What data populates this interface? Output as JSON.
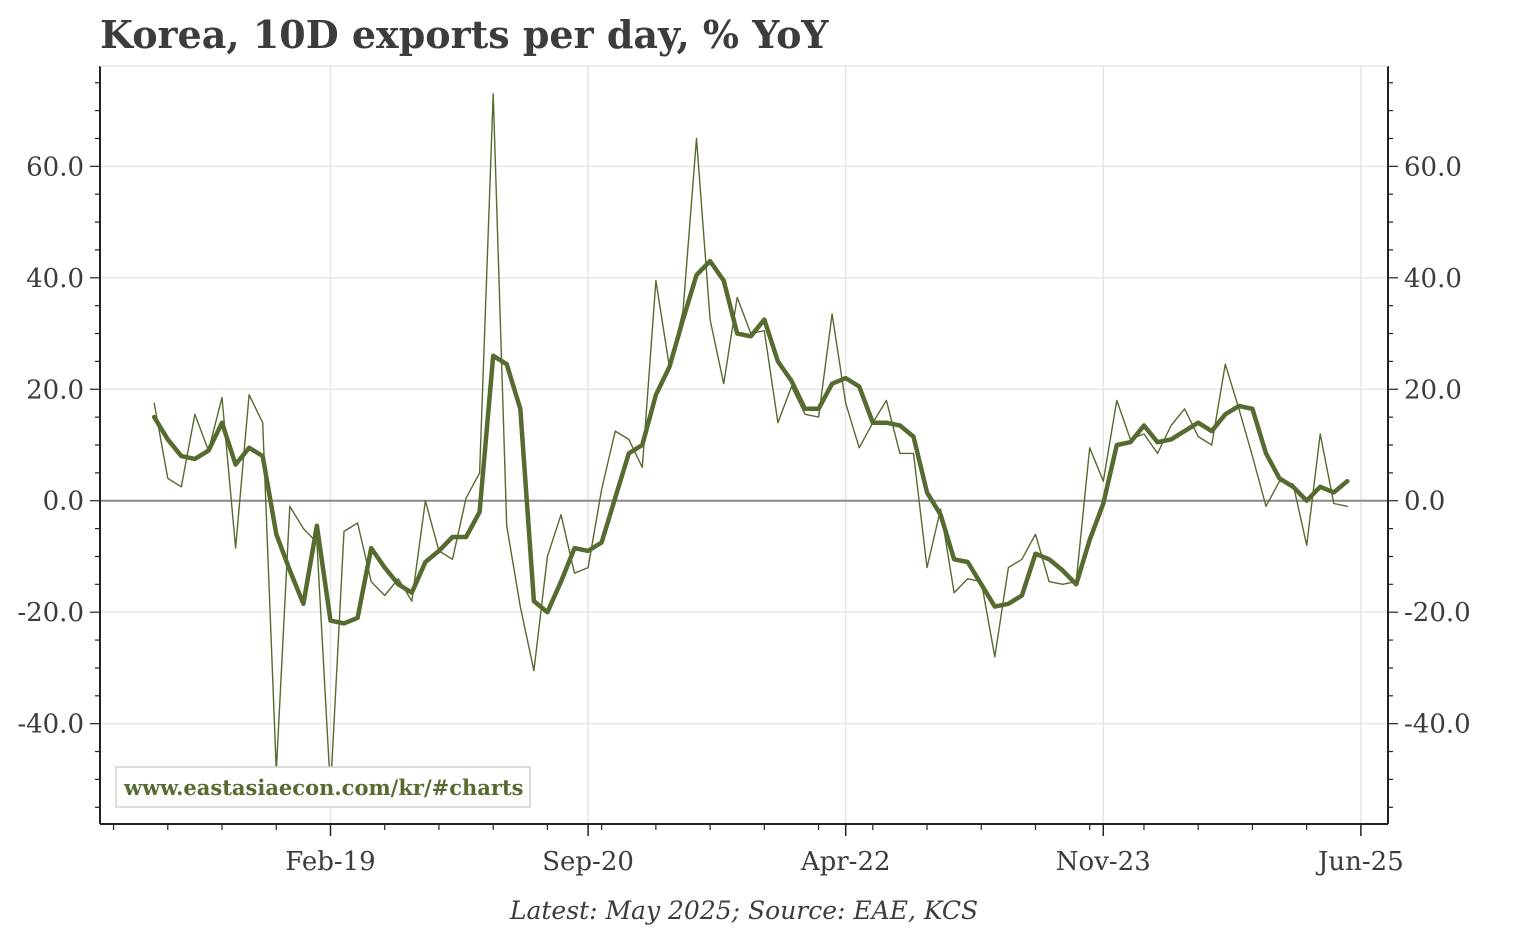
{
  "colors": {
    "series": "#556b2f",
    "text": "#3c3c3c",
    "grid": "#e6e6e6",
    "zero_line": "#888888",
    "axis": "#222222"
  },
  "chart_data": {
    "type": "line",
    "title": "Korea, 10D exports per day, % YoY",
    "caption": "Latest: May 2025; Source: EAE, KCS",
    "watermark": "www.eastasiaecon.com/kr/#charts",
    "xlabel": "",
    "ylabel": "",
    "x_range": [
      "2017-09",
      "2025-08"
    ],
    "ylim": [
      -58,
      78
    ],
    "grid": true,
    "zero_line": true,
    "right_axis": true,
    "x_ticks": [
      {
        "label": "Feb-19",
        "date": "2019-02"
      },
      {
        "label": "Sep-20",
        "date": "2020-09"
      },
      {
        "label": "Apr-22",
        "date": "2022-04"
      },
      {
        "label": "Nov-23",
        "date": "2023-11"
      },
      {
        "label": "Jun-25",
        "date": "2025-06"
      }
    ],
    "y_ticks": [
      {
        "label": "60.0",
        "value": 60
      },
      {
        "label": "40.0",
        "value": 40
      },
      {
        "label": "20.0",
        "value": 20
      },
      {
        "label": "0.0",
        "value": 0
      },
      {
        "label": "-20.0",
        "value": -20
      },
      {
        "label": "-40.0",
        "value": -40
      }
    ],
    "series": [
      {
        "style": "thin",
        "start": "2018-01",
        "values": [
          17.5,
          4,
          2.5,
          15.5,
          9,
          18.5,
          -8.5,
          19,
          14,
          -48.5,
          -1,
          -5,
          -7.5,
          -52,
          -5.5,
          -4,
          -14.5,
          -17,
          -14,
          -18,
          0,
          -9,
          -10.5,
          0.5,
          5,
          73,
          -4.5,
          -19,
          -30.5,
          -10,
          -2.5,
          -13,
          -12,
          2,
          12.5,
          11,
          6,
          39.5,
          24,
          34,
          65,
          32.5,
          21,
          36.5,
          30,
          30.5,
          14,
          20.5,
          15.5,
          15,
          33.5,
          17.5,
          9.5,
          14,
          18,
          8.5,
          8.5,
          -12,
          -1.5,
          -16.5,
          -14,
          -14.5,
          -28,
          -12,
          -10.5,
          -6,
          -14.5,
          -15,
          -14.5,
          9.5,
          3.5,
          18,
          11,
          12,
          8.5,
          13.5,
          16.5,
          11.5,
          10,
          24.5,
          16.5,
          8,
          -1,
          3.5,
          3,
          -8,
          12,
          -0.5,
          -1
        ]
      },
      {
        "style": "thick",
        "start": "2018-01",
        "values": [
          15,
          11,
          8,
          7.5,
          9,
          14,
          6.5,
          9.5,
          8,
          -6,
          -12.5,
          -18.5,
          -4.5,
          -21.5,
          -22,
          -21,
          -8.5,
          -12,
          -15,
          -16.5,
          -11,
          -9,
          -6.5,
          -6.5,
          -2,
          26,
          24.5,
          16.5,
          -18,
          -20,
          -14.5,
          -8.5,
          -9,
          -7.5,
          0.5,
          8.5,
          10,
          19,
          24,
          32.5,
          40.5,
          43,
          39.5,
          30,
          29.5,
          32.5,
          25,
          21.5,
          16.5,
          16.5,
          21,
          22,
          20.5,
          14,
          14,
          13.5,
          11.5,
          1.5,
          -2.5,
          -10.5,
          -11,
          -15,
          -19,
          -18.5,
          -17,
          -9.5,
          -10.5,
          -12.5,
          -15,
          -7,
          -0.5,
          10,
          10.5,
          13.5,
          10.5,
          11,
          12.5,
          14,
          12.5,
          15.5,
          17,
          16.5,
          8.5,
          4,
          2.5,
          0,
          2.5,
          1.5,
          3.5
        ]
      }
    ]
  }
}
